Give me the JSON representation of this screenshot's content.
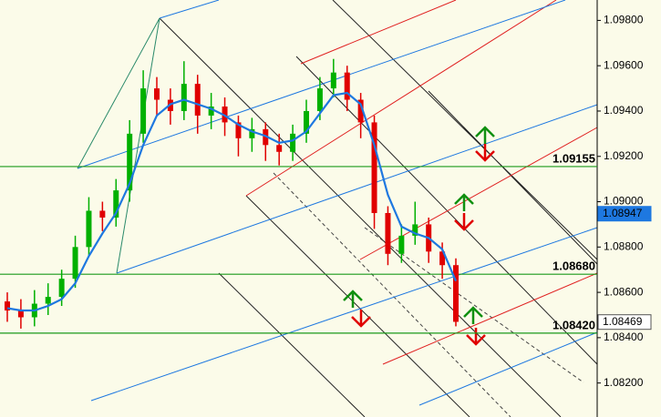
{
  "chart_data": {
    "type": "candlestick",
    "ylim": [
      1.0805,
      1.0989
    ],
    "yticks": [
      {
        "value": 1.098,
        "label": "1.09800"
      },
      {
        "value": 1.096,
        "label": "1.09600"
      },
      {
        "value": 1.094,
        "label": "1.09400"
      },
      {
        "value": 1.092,
        "label": "1.09200"
      },
      {
        "value": 1.09,
        "label": "1.09000"
      },
      {
        "value": 1.088,
        "label": "1.08800"
      },
      {
        "value": 1.086,
        "label": "1.08600"
      },
      {
        "value": 1.084,
        "label": "1.08400"
      },
      {
        "value": 1.082,
        "label": "1.08200"
      }
    ],
    "up_color": "#00b000",
    "down_color": "#e00000",
    "open": [
      1.0856,
      1.0852,
      1.0849,
      1.0855,
      1.0858,
      1.0866,
      1.088,
      1.0896,
      1.0893,
      1.0905,
      1.093,
      1.095,
      1.0945,
      1.094,
      1.0952,
      1.0938,
      1.0942,
      1.0935,
      1.0928,
      1.0932,
      1.0925,
      1.0922,
      1.093,
      1.094,
      1.095,
      1.0957,
      1.0945,
      1.0935,
      1.0895,
      1.0877,
      1.0885,
      1.089,
      1.0878,
      1.0872
    ],
    "high": [
      1.086,
      1.0857,
      1.0861,
      1.0864,
      1.087,
      1.0885,
      1.0902,
      1.09,
      1.091,
      1.0936,
      1.0958,
      1.0955,
      1.095,
      1.0962,
      1.0956,
      1.0948,
      1.0946,
      1.0938,
      1.0937,
      1.0935,
      1.093,
      1.0934,
      1.0945,
      1.0955,
      1.0963,
      1.096,
      1.0948,
      1.0938,
      1.0898,
      1.089,
      1.09,
      1.0893,
      1.0882,
      1.0875
    ],
    "low": [
      1.0847,
      1.0844,
      1.0845,
      1.085,
      1.0854,
      1.0862,
      1.0876,
      1.0887,
      1.0889,
      1.09,
      1.0926,
      1.0938,
      1.0934,
      1.0936,
      1.093,
      1.0932,
      1.0929,
      1.092,
      1.0922,
      1.0918,
      1.0916,
      1.0918,
      1.0926,
      1.0936,
      1.0946,
      1.094,
      1.0928,
      1.0888,
      1.0872,
      1.0873,
      1.0881,
      1.0873,
      1.0866,
      1.0845
    ],
    "close": [
      1.0852,
      1.0849,
      1.0855,
      1.0858,
      1.0866,
      1.088,
      1.0896,
      1.0893,
      1.0905,
      1.093,
      1.095,
      1.0945,
      1.094,
      1.0952,
      1.0938,
      1.0942,
      1.0935,
      1.0928,
      1.0932,
      1.0925,
      1.0922,
      1.093,
      1.094,
      1.095,
      1.0957,
      1.0945,
      1.0935,
      1.0895,
      1.0877,
      1.0885,
      1.089,
      1.0878,
      1.0872,
      1.0847
    ],
    "ma": {
      "color": "#1e78e0",
      "values": [
        1.0853,
        1.0852,
        1.0852,
        1.0854,
        1.0857,
        1.0864,
        1.0876,
        1.0886,
        1.0895,
        1.0908,
        1.0925,
        1.0938,
        1.0943,
        1.0945,
        1.0943,
        1.0941,
        1.0938,
        1.0934,
        1.0931,
        1.0929,
        1.0926,
        1.0927,
        1.0931,
        1.0939,
        1.0947,
        1.0948,
        1.0943,
        1.0925,
        1.0903,
        1.0889,
        1.0886,
        1.0884,
        1.0879,
        1.0865
      ]
    },
    "levels": [
      {
        "value": 1.09155,
        "label": "1.09155"
      },
      {
        "value": 1.0868,
        "label": "1.08680"
      },
      {
        "value": 1.0842,
        "label": "1.08420"
      }
    ],
    "level_color": "#1a9a1a",
    "markers": [
      {
        "value": 1.08947,
        "label": "1.08947",
        "color": "#1e78e0"
      },
      {
        "value": 1.08469,
        "label": "1.08469",
        "color": "#ffffff"
      }
    ]
  }
}
